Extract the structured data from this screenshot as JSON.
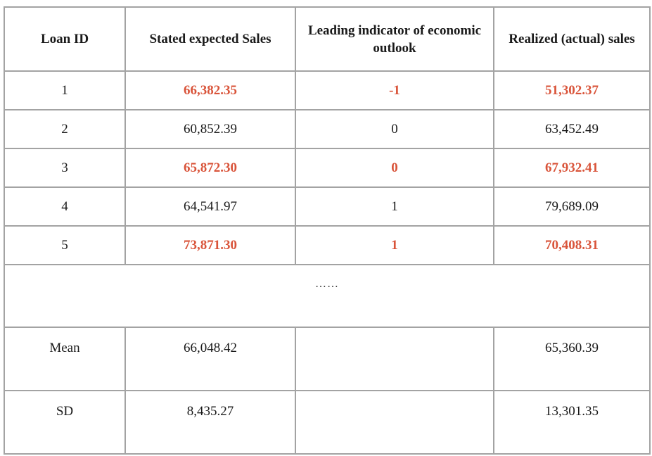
{
  "table": {
    "headers": [
      "Loan ID",
      "Stated expected Sales",
      "Leading indicator of economic outlook",
      "Realized (actual) sales"
    ],
    "rows": [
      {
        "id": "1",
        "expected": "66,382.35",
        "indicator": "-1",
        "realized": "51,302.37",
        "highlight": true
      },
      {
        "id": "2",
        "expected": "60,852.39",
        "indicator": "0",
        "realized": "63,452.49",
        "highlight": false
      },
      {
        "id": "3",
        "expected": "65,872.30",
        "indicator": "0",
        "realized": "67,932.41",
        "highlight": true
      },
      {
        "id": "4",
        "expected": "64,541.97",
        "indicator": "1",
        "realized": "79,689.09",
        "highlight": false
      },
      {
        "id": "5",
        "expected": "73,871.30",
        "indicator": "1",
        "realized": "70,408.31",
        "highlight": true
      }
    ],
    "ellipsis": "……",
    "summary": [
      {
        "label": "Mean",
        "expected": "66,048.42",
        "indicator": "",
        "realized": "65,360.39"
      },
      {
        "label": "SD",
        "expected": "8,435.27",
        "indicator": "",
        "realized": "13,301.35"
      }
    ],
    "highlight_color": "#d9543a",
    "border_color": "#a3a3a3"
  }
}
